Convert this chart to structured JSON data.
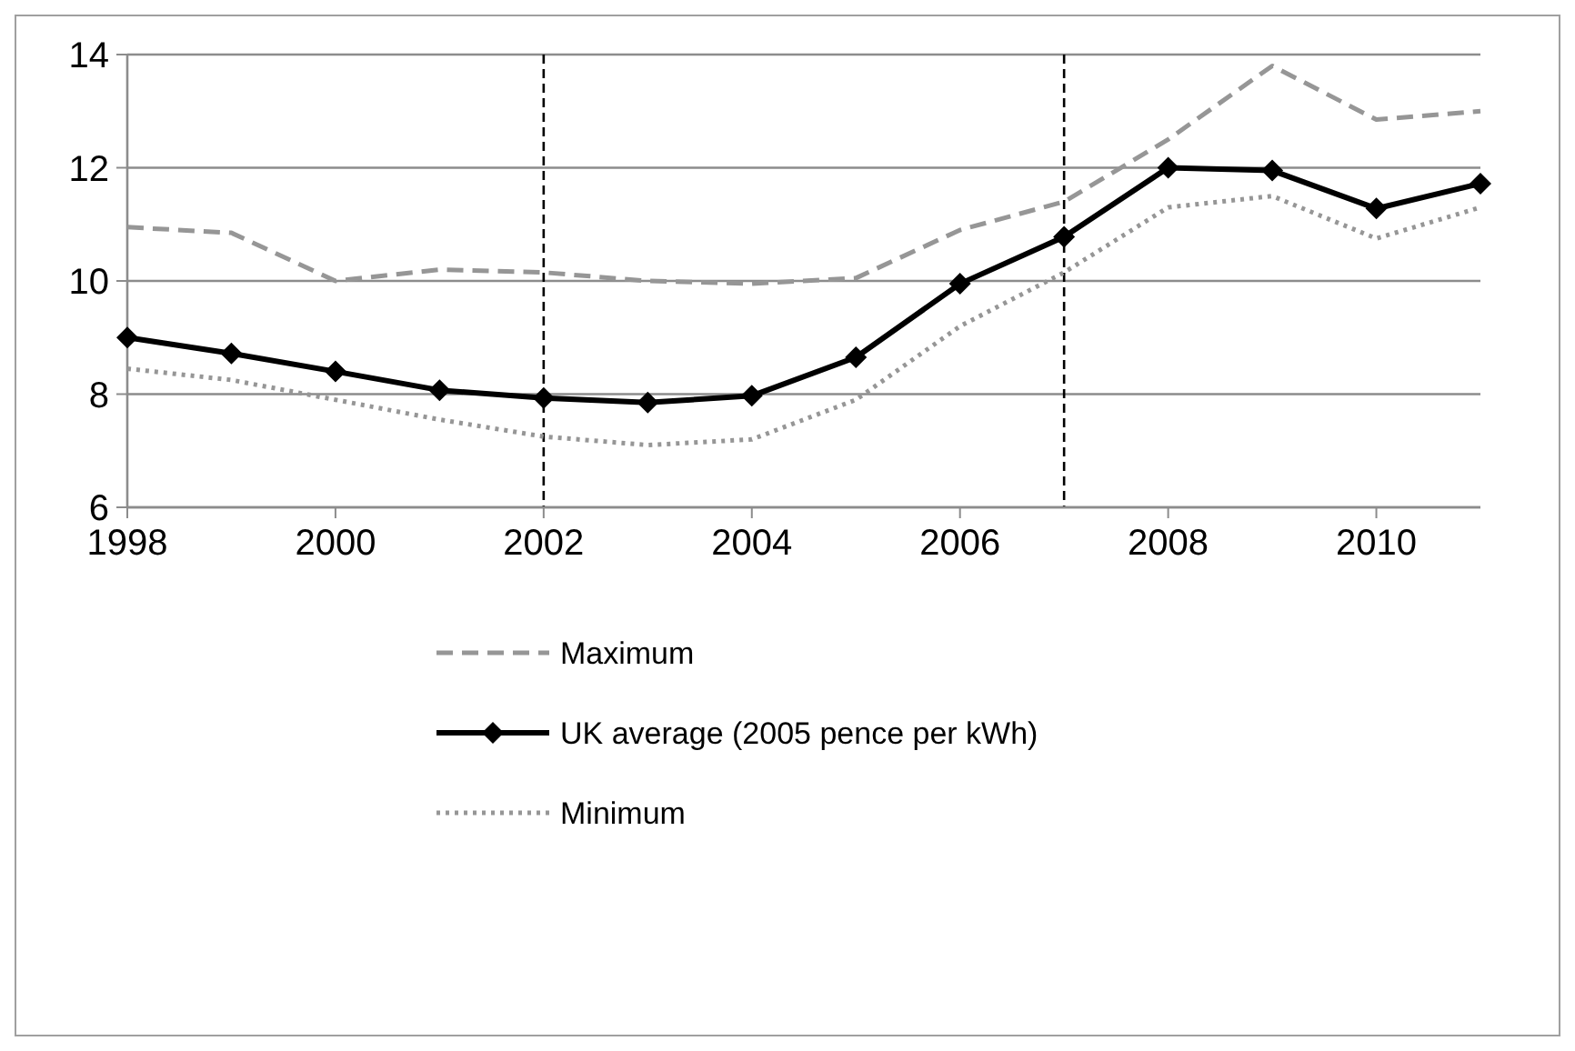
{
  "chart_data": {
    "type": "line",
    "x": [
      1998,
      1999,
      2000,
      2001,
      2002,
      2003,
      2004,
      2005,
      2006,
      2007,
      2008,
      2009,
      2010,
      2011
    ],
    "xlim": [
      1998,
      2011
    ],
    "xticks": [
      1998,
      2000,
      2002,
      2004,
      2006,
      2008,
      2010
    ],
    "ylim": [
      6,
      14
    ],
    "yticks": [
      6,
      8,
      10,
      12,
      14
    ],
    "grid": "y",
    "legend": "bottom",
    "ref_lines": [
      {
        "axis": "x",
        "value": 2002,
        "color": "#000000",
        "line_style": "dashed"
      },
      {
        "axis": "x",
        "value": 2007,
        "color": "#000000",
        "line_style": "dashed"
      }
    ],
    "series": [
      {
        "name": "Maximum",
        "color": "#969696",
        "line_style": "dashed",
        "marker": "none",
        "values": [
          10.95,
          10.85,
          10.0,
          10.2,
          10.15,
          10.0,
          9.95,
          10.05,
          10.9,
          11.4,
          12.5,
          13.8,
          12.85,
          13.0
        ]
      },
      {
        "name": "UK average (2005 pence per kWh)",
        "color": "#000000",
        "line_style": "solid",
        "marker": "diamond",
        "values": [
          9.0,
          8.72,
          8.4,
          8.07,
          7.93,
          7.85,
          7.97,
          8.65,
          9.95,
          10.78,
          12.0,
          11.95,
          11.28,
          11.72
        ]
      },
      {
        "name": "Minimum",
        "color": "#969696",
        "line_style": "dotted",
        "marker": "none",
        "values": [
          8.45,
          8.25,
          7.9,
          7.55,
          7.25,
          7.1,
          7.2,
          7.9,
          9.2,
          10.15,
          11.3,
          11.5,
          10.75,
          11.3
        ]
      }
    ]
  }
}
